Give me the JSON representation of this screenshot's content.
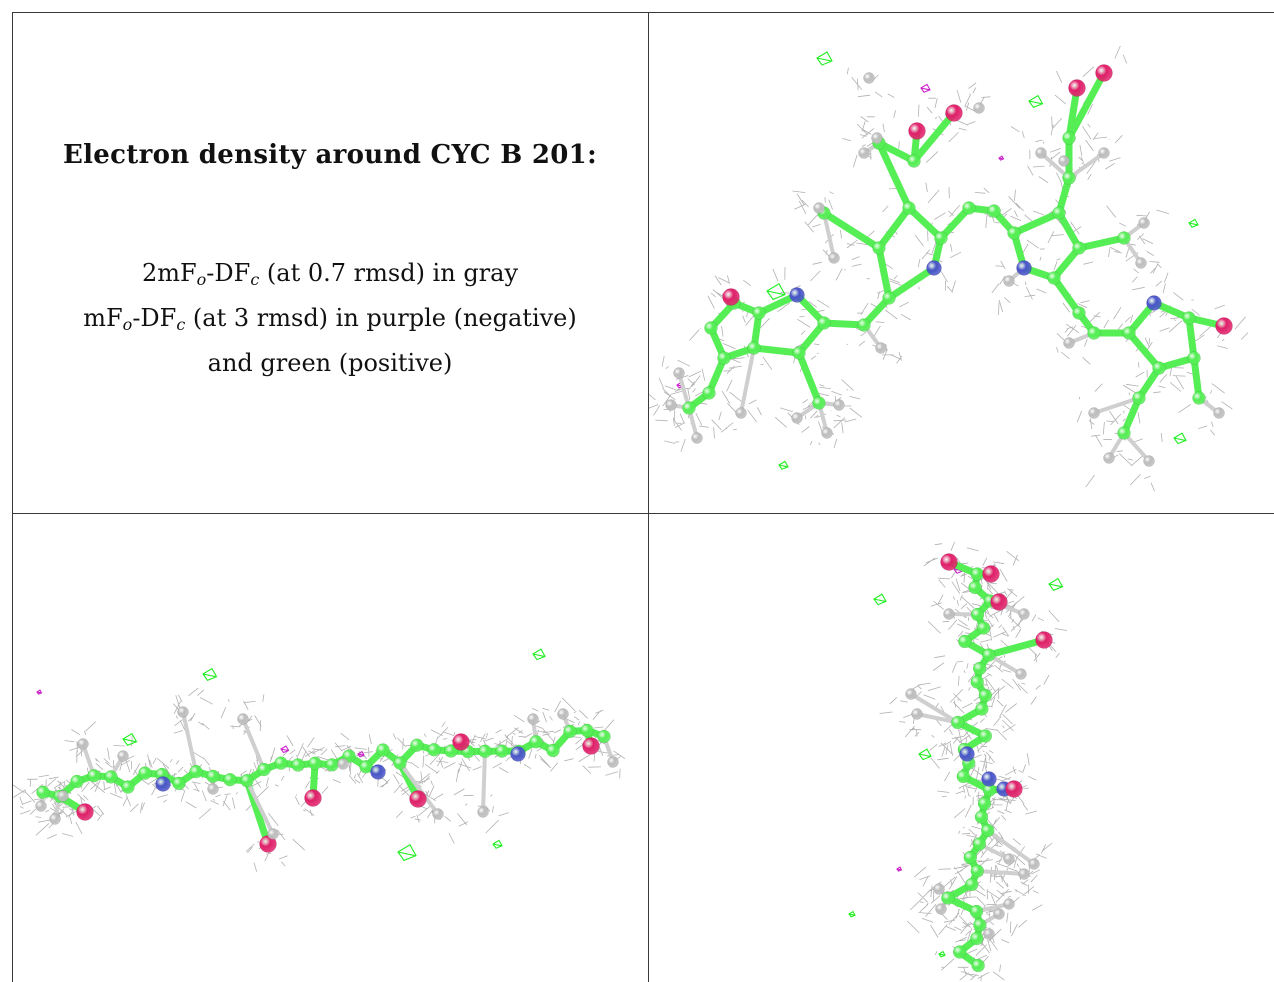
{
  "caption": {
    "title": "Electron density around CYC B 201:",
    "line1_pre": "2mF",
    "line1_sub1": "o",
    "line1_mid": "-DF",
    "line1_sub2": "c",
    "line1_post": " (at 0.7 rmsd) in gray",
    "line2_pre": "mF",
    "line2_sub1": "o",
    "line2_mid": "-DF",
    "line2_sub2": "c",
    "line2_post": " (at 3 rmsd) in purple (negative)",
    "line3": "and green (positive)"
  },
  "colors": {
    "mesh_2fofc": "#a9a9a9",
    "diff_positive": "#22ee22",
    "diff_negative": "#cc22cc",
    "carbon": "#55ee55",
    "nitrogen": "#4a55c8",
    "oxygen": "#e0206a",
    "hydrogen": "#e8e8e8"
  },
  "views": [
    {
      "name": "view-top-right",
      "orientation": "face-on"
    },
    {
      "name": "view-bottom-left",
      "orientation": "edge-on horizontal"
    },
    {
      "name": "view-bottom-right",
      "orientation": "edge-on vertical"
    }
  ]
}
